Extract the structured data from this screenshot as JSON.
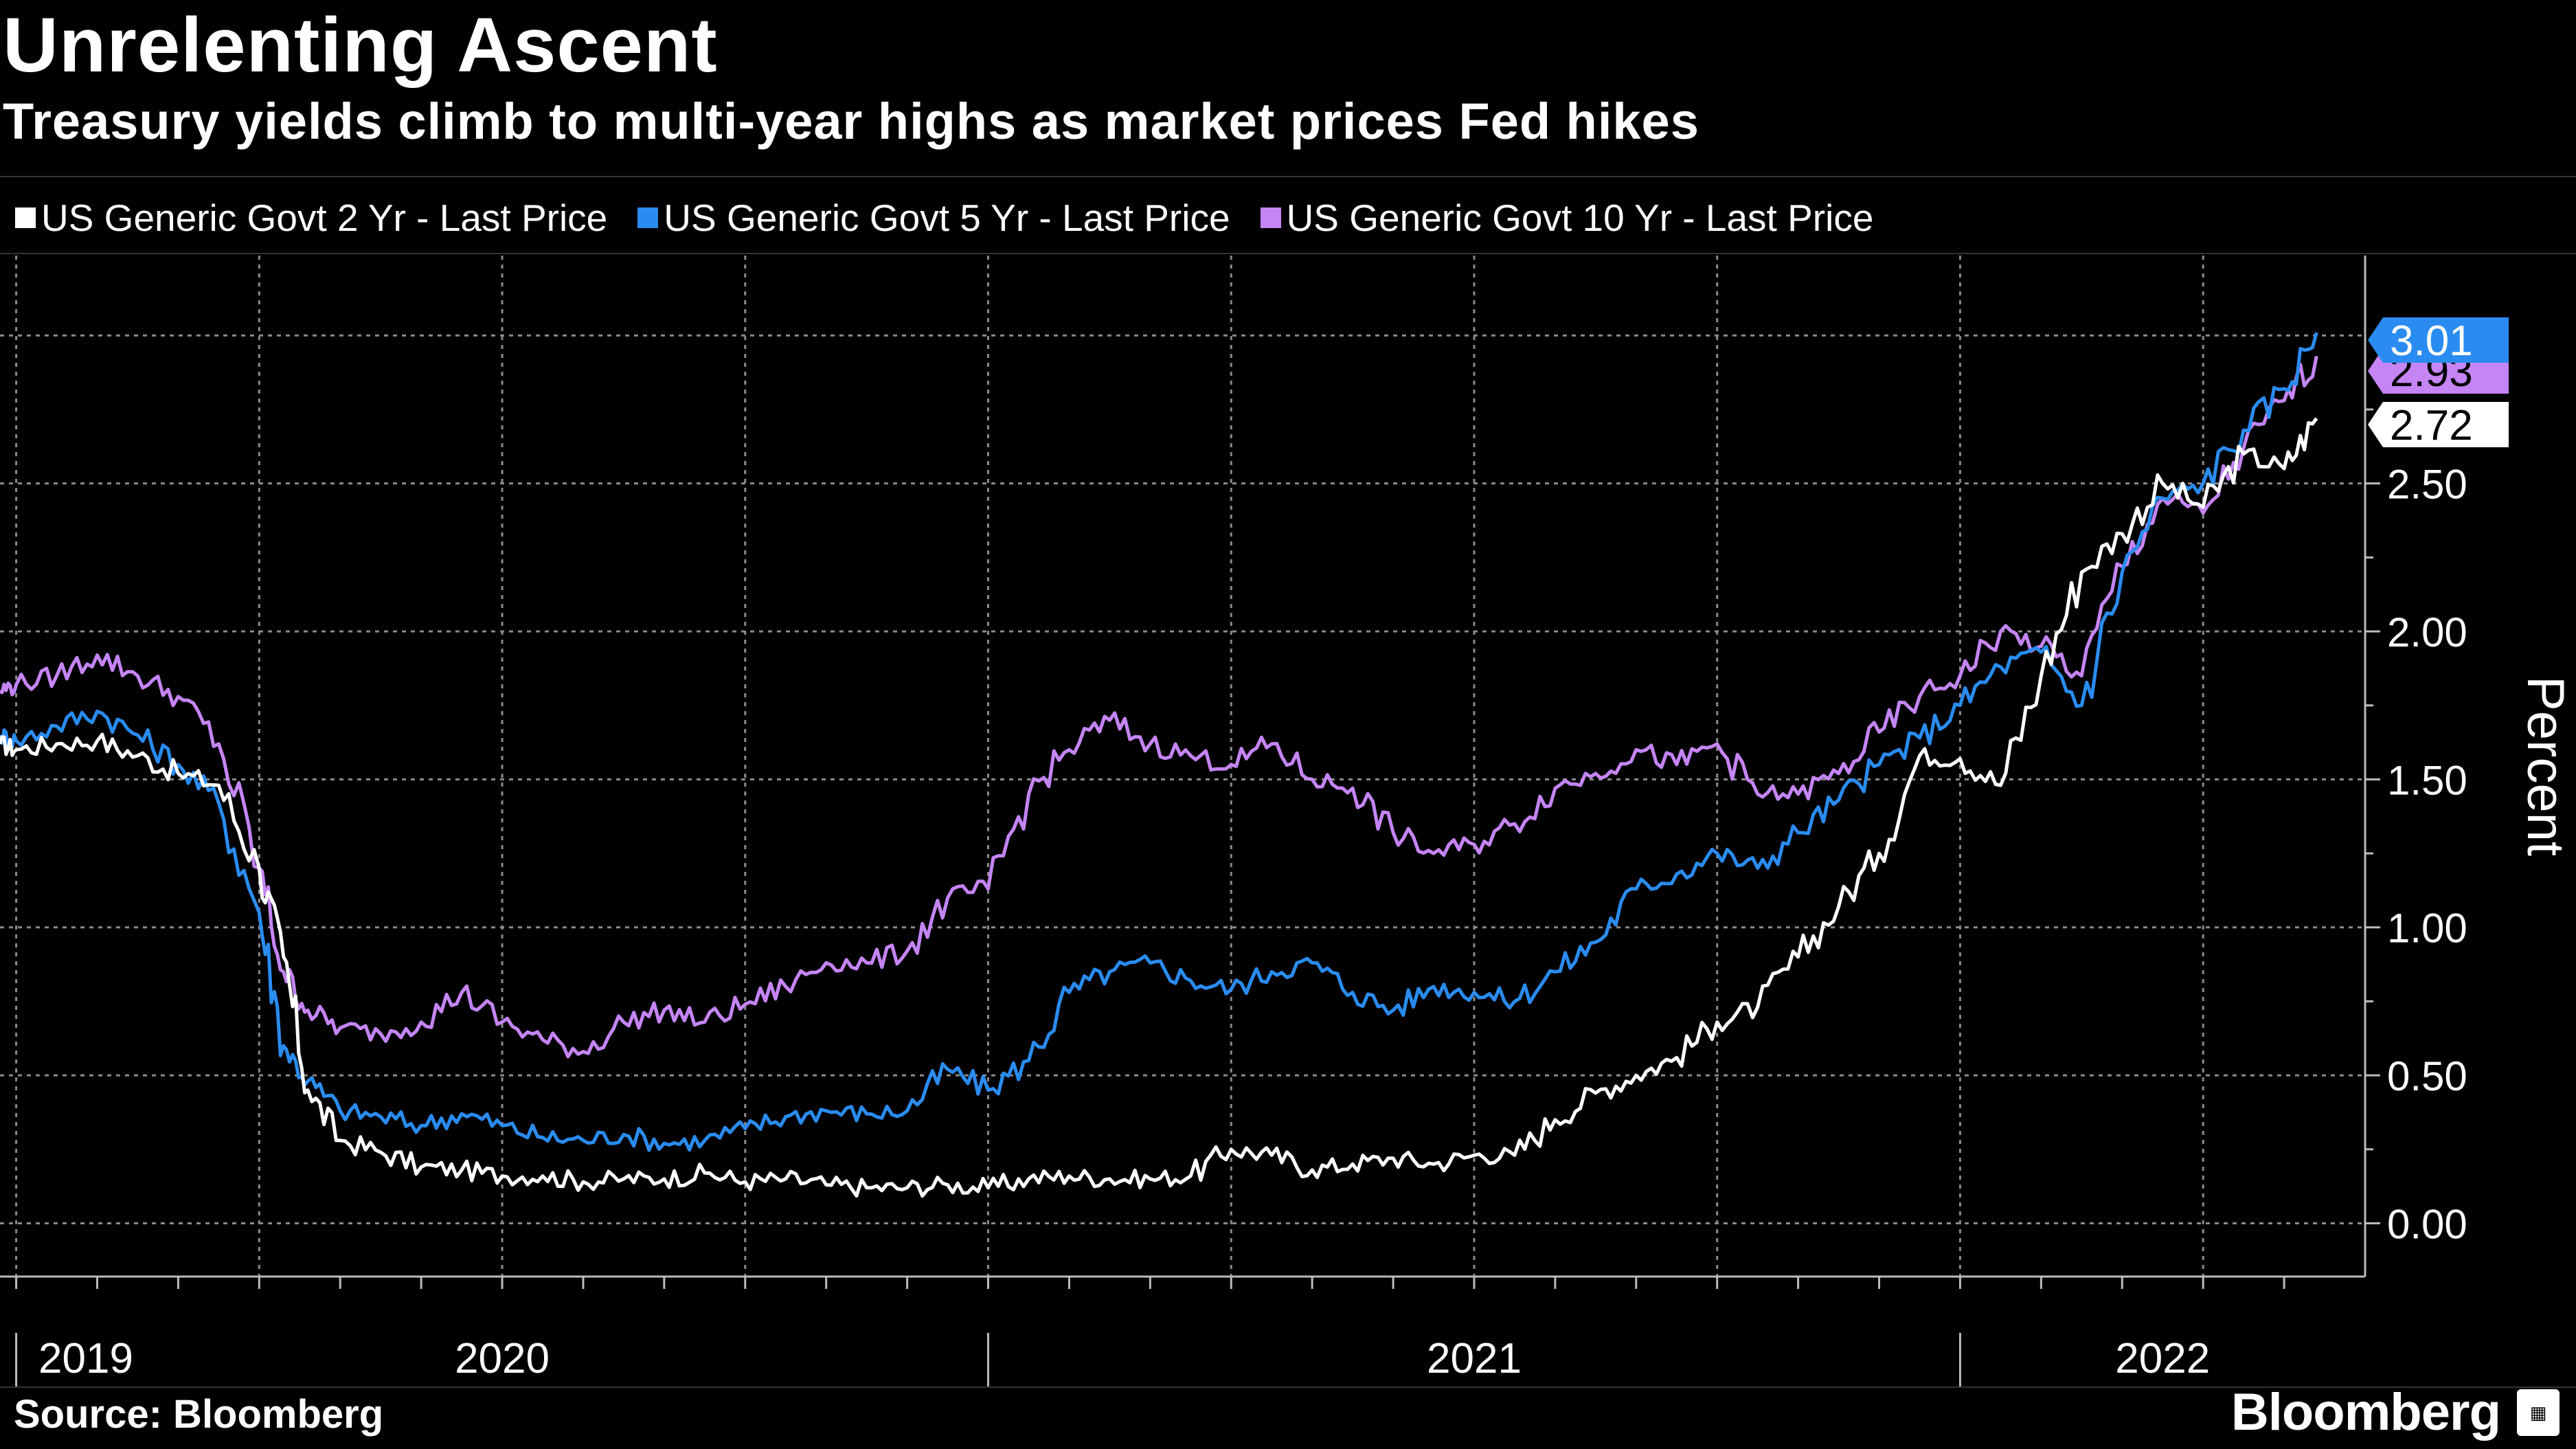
{
  "header": {
    "title": "Unrelenting Ascent",
    "subtitle": "Treasury yields climb to multi-year highs as market prices Fed hikes"
  },
  "legend": [
    {
      "label": "US Generic Govt 2 Yr - Last Price",
      "color": "#ffffff"
    },
    {
      "label": "US Generic Govt 5 Yr - Last Price",
      "color": "#2a8cf0"
    },
    {
      "label": "US Generic Govt 10 Yr - Last Price",
      "color": "#c585f5"
    }
  ],
  "footer": {
    "source": "Source: Bloomberg",
    "brand": "Bloomberg",
    "brand_icon": "terminal-icon"
  },
  "chart_data": {
    "type": "line",
    "title": "Unrelenting Ascent",
    "subtitle": "Treasury yields climb to multi-year highs as market prices Fed hikes",
    "xlabel": "",
    "ylabel": "Percent",
    "x_unit": "months since 2019-12-01 (approx.)",
    "xlim": [
      -0.2,
      29.0
    ],
    "ylim": [
      -0.18,
      3.27
    ],
    "y_ticks": [
      0.0,
      0.5,
      1.0,
      1.5,
      2.0,
      2.5
    ],
    "y_tick_labels": [
      "0.00",
      "0.50",
      "1.00",
      "1.50",
      "2.00",
      "2.50"
    ],
    "year_labels": [
      {
        "label": "2019",
        "x": -0.1
      },
      {
        "label": "2020",
        "x": 6.0
      },
      {
        "label": "2021",
        "x": 18.0
      },
      {
        "label": "2022",
        "x": 26.5
      }
    ],
    "year_boundaries": [
      0,
      12,
      24
    ],
    "grid": true,
    "series": [
      {
        "name": "US Generic Govt 2 Yr - Last Price",
        "color": "#ffffff",
        "end_label": "2.72",
        "x": [
          -0.2,
          0.0,
          0.5,
          1.0,
          1.5,
          2.0,
          2.5,
          3.0,
          3.3,
          3.6,
          4.0,
          4.5,
          5.0,
          5.5,
          6.0,
          6.5,
          7.0,
          7.5,
          8.0,
          8.5,
          9.0,
          9.5,
          10.0,
          10.5,
          11.0,
          11.5,
          12.0,
          12.5,
          13.0,
          13.5,
          14.0,
          14.5,
          15.0,
          15.5,
          16.0,
          16.5,
          17.0,
          17.5,
          18.0,
          18.5,
          19.0,
          19.5,
          20.0,
          20.5,
          21.0,
          21.5,
          22.0,
          22.5,
          23.0,
          23.5,
          24.0,
          24.5,
          25.0,
          25.5,
          26.0,
          26.5,
          27.0,
          27.5,
          28.0,
          28.4
        ],
        "values": [
          1.62,
          1.6,
          1.62,
          1.63,
          1.58,
          1.52,
          1.48,
          1.2,
          0.9,
          0.45,
          0.28,
          0.24,
          0.19,
          0.18,
          0.16,
          0.16,
          0.14,
          0.15,
          0.15,
          0.17,
          0.14,
          0.15,
          0.13,
          0.12,
          0.12,
          0.13,
          0.12,
          0.15,
          0.16,
          0.15,
          0.15,
          0.16,
          0.25,
          0.23,
          0.18,
          0.2,
          0.22,
          0.2,
          0.23,
          0.23,
          0.35,
          0.44,
          0.5,
          0.56,
          0.68,
          0.73,
          0.9,
          1.07,
          1.25,
          1.58,
          1.57,
          1.48,
          1.85,
          2.2,
          2.33,
          2.5,
          2.42,
          2.6,
          2.55,
          2.72
        ]
      },
      {
        "name": "US Generic Govt 5 Yr - Last Price",
        "color": "#2a8cf0",
        "end_label": "3.01",
        "x": [
          -0.2,
          0.0,
          0.5,
          1.0,
          1.5,
          2.0,
          2.5,
          3.0,
          3.3,
          3.6,
          4.0,
          4.5,
          5.0,
          5.5,
          6.0,
          6.5,
          7.0,
          7.5,
          8.0,
          8.5,
          9.0,
          9.5,
          10.0,
          10.5,
          11.0,
          11.5,
          12.0,
          12.5,
          13.0,
          13.5,
          14.0,
          14.5,
          15.0,
          15.5,
          16.0,
          16.5,
          17.0,
          17.5,
          18.0,
          18.5,
          19.0,
          19.5,
          20.0,
          20.5,
          21.0,
          21.5,
          22.0,
          22.5,
          23.0,
          23.5,
          24.0,
          24.5,
          25.0,
          25.5,
          26.0,
          26.5,
          27.0,
          27.5,
          28.0,
          28.4
        ],
        "values": [
          1.65,
          1.63,
          1.68,
          1.73,
          1.65,
          1.55,
          1.42,
          1.05,
          0.6,
          0.48,
          0.38,
          0.36,
          0.33,
          0.37,
          0.33,
          0.29,
          0.28,
          0.3,
          0.27,
          0.28,
          0.32,
          0.36,
          0.38,
          0.37,
          0.38,
          0.52,
          0.45,
          0.55,
          0.78,
          0.85,
          0.88,
          0.82,
          0.79,
          0.85,
          0.88,
          0.78,
          0.72,
          0.8,
          0.78,
          0.75,
          0.85,
          0.95,
          1.13,
          1.18,
          1.25,
          1.2,
          1.32,
          1.43,
          1.55,
          1.64,
          1.75,
          1.88,
          1.93,
          1.75,
          2.2,
          2.45,
          2.5,
          2.68,
          2.82,
          3.01
        ]
      },
      {
        "name": "US Generic Govt 10 Yr - Last Price",
        "color": "#c585f5",
        "end_label": "2.93",
        "x": [
          -0.2,
          0.0,
          0.5,
          1.0,
          1.5,
          2.0,
          2.5,
          3.0,
          3.3,
          3.6,
          4.0,
          4.5,
          5.0,
          5.5,
          6.0,
          6.5,
          7.0,
          7.5,
          8.0,
          8.5,
          9.0,
          9.5,
          10.0,
          10.5,
          11.0,
          11.5,
          12.0,
          12.5,
          13.0,
          13.5,
          14.0,
          14.5,
          15.0,
          15.5,
          16.0,
          16.5,
          17.0,
          17.5,
          18.0,
          18.5,
          19.0,
          19.5,
          20.0,
          20.5,
          21.0,
          21.5,
          22.0,
          22.5,
          23.0,
          23.5,
          24.0,
          24.5,
          25.0,
          25.5,
          26.0,
          26.5,
          27.0,
          27.5,
          28.0,
          28.4
        ],
        "values": [
          1.8,
          1.82,
          1.85,
          1.92,
          1.85,
          1.78,
          1.62,
          1.2,
          0.85,
          0.72,
          0.66,
          0.64,
          0.68,
          0.78,
          0.68,
          0.62,
          0.58,
          0.68,
          0.72,
          0.68,
          0.74,
          0.8,
          0.88,
          0.88,
          0.92,
          1.1,
          1.13,
          1.45,
          1.6,
          1.7,
          1.62,
          1.58,
          1.55,
          1.62,
          1.5,
          1.47,
          1.32,
          1.25,
          1.28,
          1.35,
          1.47,
          1.52,
          1.6,
          1.55,
          1.62,
          1.45,
          1.45,
          1.52,
          1.66,
          1.78,
          1.85,
          2.0,
          1.95,
          1.85,
          2.22,
          2.45,
          2.4,
          2.62,
          2.78,
          2.93
        ]
      }
    ]
  }
}
